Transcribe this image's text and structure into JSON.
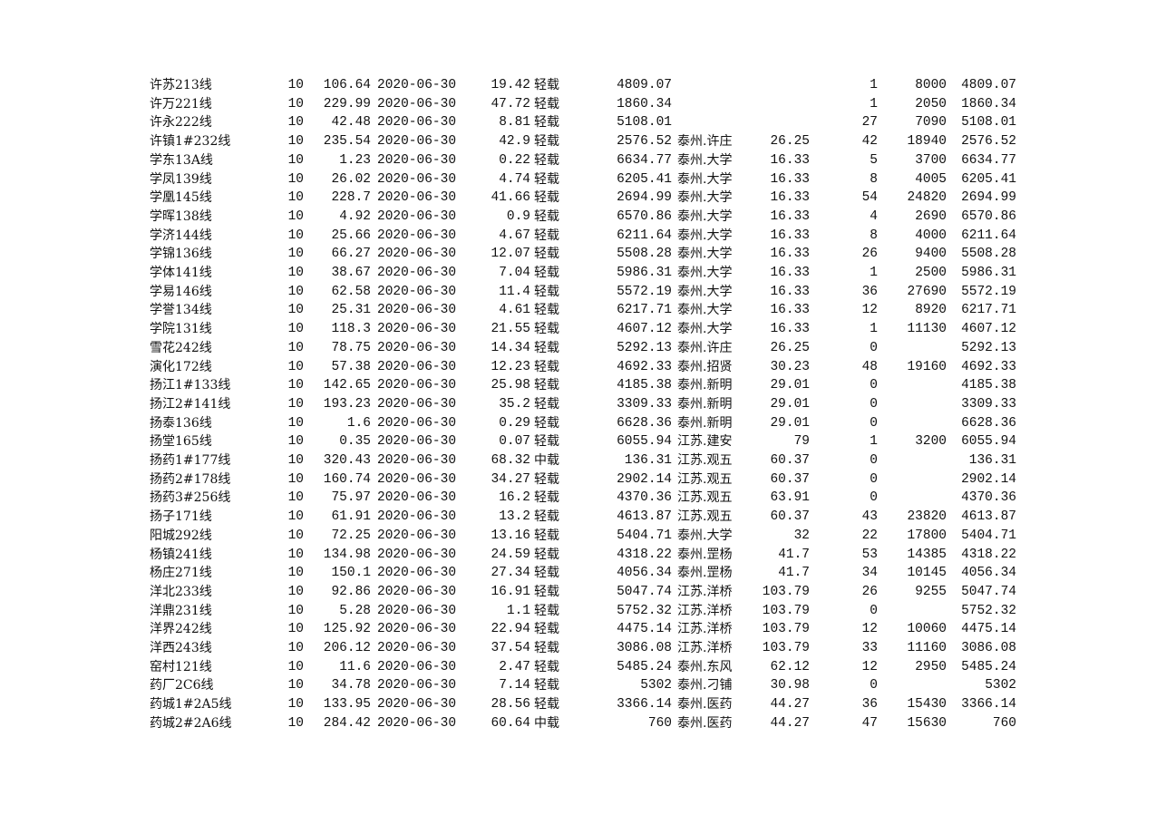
{
  "rows": [
    [
      "许苏213线",
      "10",
      "106.64",
      "2020-06-30",
      "19.42",
      "轻载",
      "4809.07",
      "",
      "",
      "1",
      "8000",
      "4809.07"
    ],
    [
      "许万221线",
      "10",
      "229.99",
      "2020-06-30",
      "47.72",
      "轻载",
      "1860.34",
      "",
      "",
      "1",
      "2050",
      "1860.34"
    ],
    [
      "许永222线",
      "10",
      "42.48",
      "2020-06-30",
      "8.81",
      "轻载",
      "5108.01",
      "",
      "",
      "27",
      "7090",
      "5108.01"
    ],
    [
      "许镇1#232线",
      "10",
      "235.54",
      "2020-06-30",
      "42.9",
      "轻载",
      "2576.52",
      "泰州.许庄",
      "26.25",
      "42",
      "18940",
      "2576.52"
    ],
    [
      "学东13A线",
      "10",
      "1.23",
      "2020-06-30",
      "0.22",
      "轻载",
      "6634.77",
      "泰州.大学",
      "16.33",
      "5",
      "3700",
      "6634.77"
    ],
    [
      "学凤139线",
      "10",
      "26.02",
      "2020-06-30",
      "4.74",
      "轻载",
      "6205.41",
      "泰州.大学",
      "16.33",
      "8",
      "4005",
      "6205.41"
    ],
    [
      "学凰145线",
      "10",
      "228.7",
      "2020-06-30",
      "41.66",
      "轻载",
      "2694.99",
      "泰州.大学",
      "16.33",
      "54",
      "24820",
      "2694.99"
    ],
    [
      "学晖138线",
      "10",
      "4.92",
      "2020-06-30",
      "0.9",
      "轻载",
      "6570.86",
      "泰州.大学",
      "16.33",
      "4",
      "2690",
      "6570.86"
    ],
    [
      "学济144线",
      "10",
      "25.66",
      "2020-06-30",
      "4.67",
      "轻载",
      "6211.64",
      "泰州.大学",
      "16.33",
      "8",
      "4000",
      "6211.64"
    ],
    [
      "学锦136线",
      "10",
      "66.27",
      "2020-06-30",
      "12.07",
      "轻载",
      "5508.28",
      "泰州.大学",
      "16.33",
      "26",
      "9400",
      "5508.28"
    ],
    [
      "学体141线",
      "10",
      "38.67",
      "2020-06-30",
      "7.04",
      "轻载",
      "5986.31",
      "泰州.大学",
      "16.33",
      "1",
      "2500",
      "5986.31"
    ],
    [
      "学易146线",
      "10",
      "62.58",
      "2020-06-30",
      "11.4",
      "轻载",
      "5572.19",
      "泰州.大学",
      "16.33",
      "36",
      "27690",
      "5572.19"
    ],
    [
      "学誉134线",
      "10",
      "25.31",
      "2020-06-30",
      "4.61",
      "轻载",
      "6217.71",
      "泰州.大学",
      "16.33",
      "12",
      "8920",
      "6217.71"
    ],
    [
      "学院131线",
      "10",
      "118.3",
      "2020-06-30",
      "21.55",
      "轻载",
      "4607.12",
      "泰州.大学",
      "16.33",
      "1",
      "11130",
      "4607.12"
    ],
    [
      "雪花242线",
      "10",
      "78.75",
      "2020-06-30",
      "14.34",
      "轻载",
      "5292.13",
      "泰州.许庄",
      "26.25",
      "0",
      "",
      "5292.13"
    ],
    [
      "演化172线",
      "10",
      "57.38",
      "2020-06-30",
      "12.23",
      "轻载",
      "4692.33",
      "泰州.招贤",
      "30.23",
      "48",
      "19160",
      "4692.33"
    ],
    [
      "扬江1#133线",
      "10",
      "142.65",
      "2020-06-30",
      "25.98",
      "轻载",
      "4185.38",
      "泰州.新明",
      "29.01",
      "0",
      "",
      "4185.38"
    ],
    [
      "扬江2#141线",
      "10",
      "193.23",
      "2020-06-30",
      "35.2",
      "轻载",
      "3309.33",
      "泰州.新明",
      "29.01",
      "0",
      "",
      "3309.33"
    ],
    [
      "扬泰136线",
      "10",
      "1.6",
      "2020-06-30",
      "0.29",
      "轻载",
      "6628.36",
      "泰州.新明",
      "29.01",
      "0",
      "",
      "6628.36"
    ],
    [
      "扬堂165线",
      "10",
      "0.35",
      "2020-06-30",
      "0.07",
      "轻载",
      "6055.94",
      "江苏.建安",
      "79",
      "1",
      "3200",
      "6055.94"
    ],
    [
      "扬药1#177线",
      "10",
      "320.43",
      "2020-06-30",
      "68.32",
      "中载",
      "136.31",
      "江苏.观五",
      "60.37",
      "0",
      "",
      "136.31"
    ],
    [
      "扬药2#178线",
      "10",
      "160.74",
      "2020-06-30",
      "34.27",
      "轻载",
      "2902.14",
      "江苏.观五",
      "60.37",
      "0",
      "",
      "2902.14"
    ],
    [
      "扬药3#256线",
      "10",
      "75.97",
      "2020-06-30",
      "16.2",
      "轻载",
      "4370.36",
      "江苏.观五",
      "63.91",
      "0",
      "",
      "4370.36"
    ],
    [
      "扬子171线",
      "10",
      "61.91",
      "2020-06-30",
      "13.2",
      "轻载",
      "4613.87",
      "江苏.观五",
      "60.37",
      "43",
      "23820",
      "4613.87"
    ],
    [
      "阳城292线",
      "10",
      "72.25",
      "2020-06-30",
      "13.16",
      "轻载",
      "5404.71",
      "泰州.大学",
      "32",
      "22",
      "17800",
      "5404.71"
    ],
    [
      "杨镇241线",
      "10",
      "134.98",
      "2020-06-30",
      "24.59",
      "轻载",
      "4318.22",
      "泰州.罡杨",
      "41.7",
      "53",
      "14385",
      "4318.22"
    ],
    [
      "杨庄271线",
      "10",
      "150.1",
      "2020-06-30",
      "27.34",
      "轻载",
      "4056.34",
      "泰州.罡杨",
      "41.7",
      "34",
      "10145",
      "4056.34"
    ],
    [
      "洋北233线",
      "10",
      "92.86",
      "2020-06-30",
      "16.91",
      "轻载",
      "5047.74",
      "江苏.洋桥",
      "103.79",
      "26",
      "9255",
      "5047.74"
    ],
    [
      "洋鼎231线",
      "10",
      "5.28",
      "2020-06-30",
      "1.1",
      "轻载",
      "5752.32",
      "江苏.洋桥",
      "103.79",
      "0",
      "",
      "5752.32"
    ],
    [
      "洋界242线",
      "10",
      "125.92",
      "2020-06-30",
      "22.94",
      "轻载",
      "4475.14",
      "江苏.洋桥",
      "103.79",
      "12",
      "10060",
      "4475.14"
    ],
    [
      "洋西243线",
      "10",
      "206.12",
      "2020-06-30",
      "37.54",
      "轻载",
      "3086.08",
      "江苏.洋桥",
      "103.79",
      "33",
      "11160",
      "3086.08"
    ],
    [
      "窑村121线",
      "10",
      "11.6",
      "2020-06-30",
      "2.47",
      "轻载",
      "5485.24",
      "泰州.东风",
      "62.12",
      "12",
      "2950",
      "5485.24"
    ],
    [
      "药厂2C6线",
      "10",
      "34.78",
      "2020-06-30",
      "7.14",
      "轻载",
      "5302",
      "泰州.刁铺",
      "30.98",
      "0",
      "",
      "5302"
    ],
    [
      "药城1#2A5线",
      "10",
      "133.95",
      "2020-06-30",
      "28.56",
      "轻载",
      "3366.14",
      "泰州.医药",
      "44.27",
      "36",
      "15430",
      "3366.14"
    ],
    [
      "药城2#2A6线",
      "10",
      "284.42",
      "2020-06-30",
      "60.64",
      "中载",
      "760",
      "泰州.医药",
      "44.27",
      "47",
      "15630",
      "760"
    ]
  ]
}
